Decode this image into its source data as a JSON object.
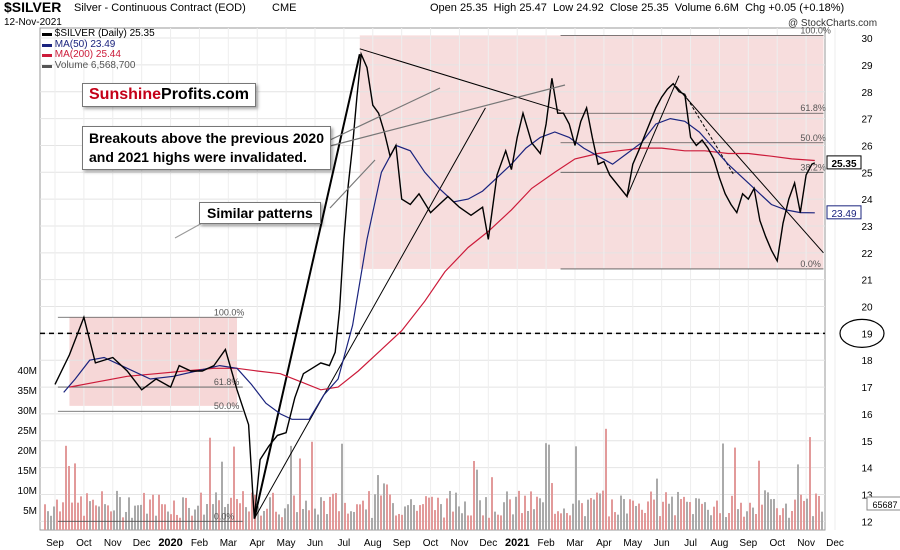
{
  "header": {
    "symbol": "$SILVER",
    "description": "Silver - Continuous Contract (EOD)",
    "exchange": "CME",
    "date": "12-Nov-2021",
    "open_label": "Open",
    "open": "25.35",
    "high_label": "High",
    "high": "25.47",
    "low_label": "Low",
    "low": "24.92",
    "close_label": "Close",
    "close": "25.35",
    "volume_label": "Volume",
    "volume": "6.6M",
    "chg_label": "Chg",
    "chg": "+0.05 (+0.18%)",
    "watermark": "@ StockCharts.com"
  },
  "legend": [
    {
      "text": "$SILVER (Daily) 25.35",
      "color": "#000000"
    },
    {
      "text": "MA(50) 23.49",
      "color": "#1a237e"
    },
    {
      "text": "MA(200) 25.44",
      "color": "#cc1b3a"
    },
    {
      "text": "Volume 6,568,700",
      "color": "#555555"
    }
  ],
  "brand": {
    "part1": "Sunshine",
    "part2": "Profits.com",
    "color1": "#c40018",
    "color2": "#000000"
  },
  "annotations": {
    "breakouts_line1": "Breakouts above the previous 2020",
    "breakouts_line2": "and 2021 highs were invalidated.",
    "similar": "Similar patterns"
  },
  "colors": {
    "price": "#000000",
    "ma50": "#1a237e",
    "ma200": "#cc1b3a",
    "band": "#f2c6c6",
    "volume": "#aaaaaa",
    "volume_alt": "#e29a9a"
  },
  "chart_data": {
    "type": "line",
    "title": "$SILVER Silver - Continuous Contract (EOD) CME",
    "x_labels": [
      "Sep",
      "Oct",
      "Nov",
      "Dec",
      "2020",
      "Feb",
      "Mar",
      "Apr",
      "May",
      "Jun",
      "Jul",
      "Aug",
      "Sep",
      "Oct",
      "Nov",
      "Dec",
      "2021",
      "Feb",
      "Mar",
      "Apr",
      "May",
      "Jun",
      "Jul",
      "Aug",
      "Sep",
      "Oct",
      "Nov",
      "Dec"
    ],
    "price_ticks": [
      12,
      13,
      14,
      15,
      16,
      17,
      18,
      19,
      20,
      21,
      22,
      23,
      24,
      25,
      26,
      27,
      28,
      29,
      30
    ],
    "price_ylim": [
      11.9,
      30.3
    ],
    "volume_ticks": [
      "5M",
      "10M",
      "15M",
      "20M",
      "25M",
      "30M",
      "35M",
      "40M"
    ],
    "volume_ylim": [
      0,
      40
    ],
    "last_price_tags": [
      "25.35",
      "23.49"
    ],
    "volume_tag": "65687",
    "series": [
      {
        "name": "$SILVER (Daily)",
        "values": [
          [
            0.0,
            17.1
          ],
          [
            0.5,
            18.2
          ],
          [
            1.0,
            19.6
          ],
          [
            1.4,
            17.9
          ],
          [
            2.0,
            18.1
          ],
          [
            2.5,
            17.6
          ],
          [
            3.0,
            16.9
          ],
          [
            3.5,
            17.3
          ],
          [
            4.0,
            17.0
          ],
          [
            4.3,
            17.8
          ],
          [
            4.7,
            17.6
          ],
          [
            5.1,
            17.6
          ],
          [
            5.5,
            17.8
          ],
          [
            5.9,
            18.4
          ],
          [
            6.3,
            16.9
          ],
          [
            6.7,
            15.6
          ],
          [
            6.9,
            12.1
          ],
          [
            7.1,
            14.3
          ],
          [
            7.4,
            14.8
          ],
          [
            7.7,
            15.2
          ],
          [
            8.0,
            15.3
          ],
          [
            8.3,
            16.6
          ],
          [
            8.6,
            17.5
          ],
          [
            8.9,
            17.7
          ],
          [
            9.2,
            17.9
          ],
          [
            9.5,
            17.8
          ],
          [
            9.7,
            18.3
          ],
          [
            9.85,
            19.9
          ],
          [
            10.0,
            22.5
          ],
          [
            10.15,
            24.5
          ],
          [
            10.3,
            26.0
          ],
          [
            10.45,
            27.8
          ],
          [
            10.6,
            29.4
          ],
          [
            10.8,
            28.9
          ],
          [
            11.0,
            27.5
          ],
          [
            11.2,
            27.2
          ],
          [
            11.4,
            26.5
          ],
          [
            11.6,
            25.6
          ],
          [
            11.8,
            26.0
          ],
          [
            12.0,
            24.0
          ],
          [
            12.3,
            23.8
          ],
          [
            12.6,
            24.2
          ],
          [
            13.0,
            23.5
          ],
          [
            13.3,
            23.8
          ],
          [
            13.6,
            24.1
          ],
          [
            14.0,
            23.7
          ],
          [
            14.4,
            23.4
          ],
          [
            14.8,
            23.7
          ],
          [
            15.0,
            22.5
          ],
          [
            15.3,
            24.9
          ],
          [
            15.6,
            25.8
          ],
          [
            15.8,
            25.1
          ],
          [
            16.0,
            26.3
          ],
          [
            16.2,
            27.2
          ],
          [
            16.5,
            26.1
          ],
          [
            16.8,
            25.7
          ],
          [
            17.0,
            26.8
          ],
          [
            17.2,
            28.5
          ],
          [
            17.4,
            27.2
          ],
          [
            17.6,
            27.2
          ],
          [
            17.8,
            26.8
          ],
          [
            18.0,
            26.0
          ],
          [
            18.2,
            26.9
          ],
          [
            18.4,
            27.4
          ],
          [
            18.6,
            26.3
          ],
          [
            18.8,
            25.3
          ],
          [
            19.0,
            25.4
          ],
          [
            19.2,
            24.9
          ],
          [
            19.5,
            24.5
          ],
          [
            19.8,
            24.1
          ],
          [
            20.0,
            25.3
          ],
          [
            20.2,
            25.8
          ],
          [
            20.5,
            26.6
          ],
          [
            20.8,
            27.4
          ],
          [
            21.0,
            27.8
          ],
          [
            21.2,
            28.1
          ],
          [
            21.4,
            28.3
          ],
          [
            21.6,
            28.0
          ],
          [
            21.8,
            27.9
          ],
          [
            22.0,
            26.3
          ],
          [
            22.2,
            26.0
          ],
          [
            22.4,
            26.2
          ],
          [
            22.6,
            25.9
          ],
          [
            22.8,
            25.5
          ],
          [
            23.0,
            24.8
          ],
          [
            23.2,
            24.2
          ],
          [
            23.4,
            23.8
          ],
          [
            23.6,
            23.5
          ],
          [
            23.8,
            24.2
          ],
          [
            24.0,
            24.0
          ],
          [
            24.2,
            24.4
          ],
          [
            24.4,
            23.2
          ],
          [
            24.6,
            22.6
          ],
          [
            24.8,
            22.1
          ],
          [
            25.0,
            21.7
          ],
          [
            25.2,
            23.1
          ],
          [
            25.4,
            24.0
          ],
          [
            25.6,
            24.6
          ],
          [
            25.8,
            23.5
          ],
          [
            26.0,
            24.9
          ],
          [
            26.2,
            25.3
          ],
          [
            26.3,
            25.35
          ]
        ]
      },
      {
        "name": "MA(50)",
        "values": [
          [
            0.3,
            16.8
          ],
          [
            0.7,
            17.3
          ],
          [
            1.2,
            18.0
          ],
          [
            1.7,
            18.1
          ],
          [
            2.5,
            17.7
          ],
          [
            3.3,
            17.3
          ],
          [
            4.1,
            17.4
          ],
          [
            4.9,
            17.6
          ],
          [
            5.7,
            17.8
          ],
          [
            6.3,
            17.7
          ],
          [
            6.8,
            17.1
          ],
          [
            7.3,
            16.4
          ],
          [
            7.8,
            16.0
          ],
          [
            8.2,
            15.8
          ],
          [
            8.8,
            15.8
          ],
          [
            9.3,
            16.7
          ],
          [
            9.8,
            17.3
          ],
          [
            10.3,
            19.3
          ],
          [
            10.8,
            22.5
          ],
          [
            11.3,
            25.0
          ],
          [
            11.8,
            26.0
          ],
          [
            12.3,
            25.8
          ],
          [
            12.8,
            25.0
          ],
          [
            13.3,
            24.4
          ],
          [
            13.8,
            23.9
          ],
          [
            14.3,
            24.0
          ],
          [
            14.8,
            24.3
          ],
          [
            15.3,
            24.8
          ],
          [
            15.8,
            25.3
          ],
          [
            16.3,
            25.9
          ],
          [
            16.8,
            26.3
          ],
          [
            17.3,
            26.5
          ],
          [
            17.8,
            26.3
          ],
          [
            18.3,
            25.9
          ],
          [
            18.8,
            25.6
          ],
          [
            19.3,
            25.3
          ],
          [
            19.8,
            25.7
          ],
          [
            20.3,
            26.1
          ],
          [
            20.8,
            26.8
          ],
          [
            21.3,
            27.0
          ],
          [
            21.8,
            26.9
          ],
          [
            22.3,
            26.5
          ],
          [
            22.8,
            25.9
          ],
          [
            23.3,
            25.3
          ],
          [
            23.8,
            24.8
          ],
          [
            24.3,
            24.3
          ],
          [
            24.8,
            23.8
          ],
          [
            25.3,
            23.6
          ],
          [
            25.8,
            23.5
          ],
          [
            26.3,
            23.49
          ]
        ]
      },
      {
        "name": "MA(200)",
        "values": [
          [
            0.5,
            17.0
          ],
          [
            1.5,
            17.2
          ],
          [
            2.5,
            17.4
          ],
          [
            3.5,
            17.5
          ],
          [
            4.5,
            17.6
          ],
          [
            5.5,
            17.7
          ],
          [
            6.3,
            17.7
          ],
          [
            7.0,
            17.6
          ],
          [
            7.8,
            17.5
          ],
          [
            8.5,
            17.2
          ],
          [
            9.2,
            16.9
          ],
          [
            9.8,
            17.0
          ],
          [
            10.5,
            17.6
          ],
          [
            11.2,
            18.3
          ],
          [
            12.0,
            19.1
          ],
          [
            12.8,
            20.2
          ],
          [
            13.5,
            21.3
          ],
          [
            14.3,
            22.2
          ],
          [
            15.0,
            22.8
          ],
          [
            15.8,
            23.6
          ],
          [
            16.5,
            24.4
          ],
          [
            17.3,
            25.0
          ],
          [
            18.0,
            25.5
          ],
          [
            18.8,
            25.7
          ],
          [
            19.5,
            25.8
          ],
          [
            20.3,
            25.9
          ],
          [
            21.0,
            25.9
          ],
          [
            21.8,
            25.8
          ],
          [
            22.5,
            25.8
          ],
          [
            23.3,
            25.7
          ],
          [
            24.0,
            25.7
          ],
          [
            24.8,
            25.6
          ],
          [
            25.5,
            25.5
          ],
          [
            26.3,
            25.44
          ]
        ]
      }
    ],
    "fib_levels": {
      "left": [
        {
          "label": "100.0%",
          "value": 19.6
        },
        {
          "label": "61.8%",
          "value": 17.0
        },
        {
          "label": "50.0%",
          "value": 16.1
        },
        {
          "label": "0.0%",
          "value": 12.0
        }
      ],
      "right": [
        {
          "label": "100.0%",
          "value": 30.1
        },
        {
          "label": "61.8%",
          "value": 27.2
        },
        {
          "label": "50.0%",
          "value": 26.1
        },
        {
          "label": "38.2%",
          "value": 25.0
        },
        {
          "label": "0.0%",
          "value": 21.4
        }
      ]
    },
    "horizontal_line": {
      "value": 19.0,
      "style": "dashed"
    }
  }
}
